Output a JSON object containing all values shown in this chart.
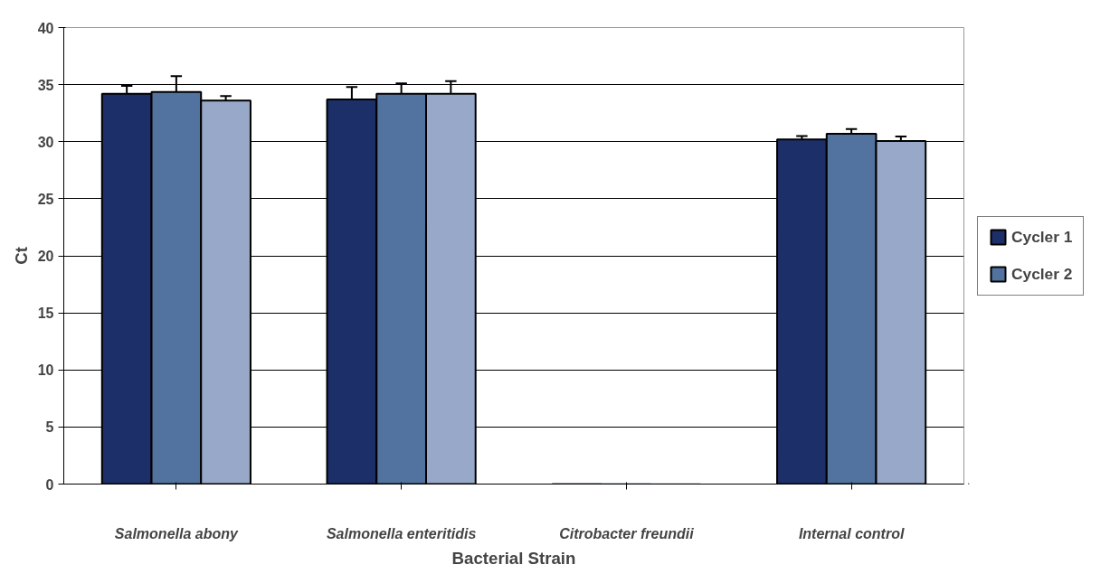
{
  "chart_data": {
    "type": "bar",
    "xlabel": "Bacterial Strain",
    "ylabel": "Ct",
    "categories": [
      "Salmonella abony",
      "Salmonella enteritidis",
      "Citrobacter freundii",
      "Internal control"
    ],
    "series": [
      {
        "name": "Cycler 1",
        "color": "#1c2f68",
        "values": [
          34.2,
          33.7,
          0,
          30.2
        ],
        "errors": [
          0.7,
          1.1,
          null,
          0.3
        ]
      },
      {
        "name": "Cycler 2",
        "color": "#52729f",
        "values": [
          34.35,
          34.2,
          0,
          30.7
        ],
        "errors": [
          1.4,
          0.9,
          null,
          0.4
        ]
      },
      {
        "color": "#98a8c8",
        "values": [
          33.6,
          34.2,
          0,
          30.06
        ],
        "errors": [
          0.4,
          1.1,
          null,
          0.4
        ]
      }
    ],
    "ylim": [
      0,
      40
    ],
    "yticks": [
      0,
      5,
      10,
      15,
      20,
      25,
      30,
      35,
      40
    ],
    "grid": "y",
    "legend": "right"
  }
}
